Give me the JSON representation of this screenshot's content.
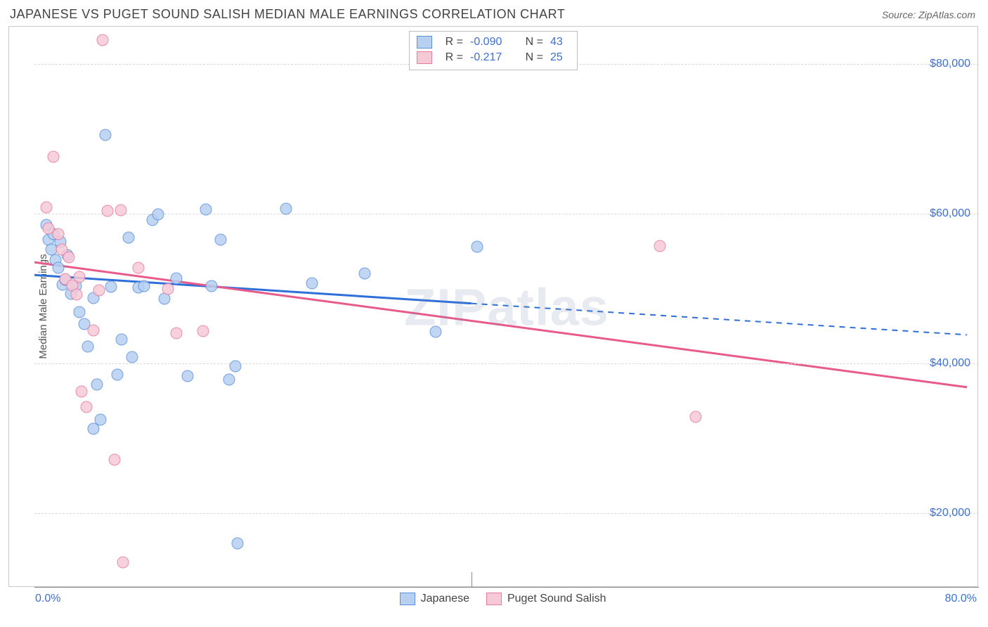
{
  "title": "JAPANESE VS PUGET SOUND SALISH MEDIAN MALE EARNINGS CORRELATION CHART",
  "source": "Source: ZipAtlas.com",
  "watermark": "ZIPatlas",
  "y_axis_label": "Median Male Earnings",
  "xlim": [
    0,
    80
  ],
  "ylim": [
    10000,
    85000
  ],
  "y_ticks": [
    20000,
    40000,
    60000,
    80000
  ],
  "y_tick_labels": [
    "$20,000",
    "$40,000",
    "$60,000",
    "$80,000"
  ],
  "x_min_label": "0.0%",
  "x_max_label": "80.0%",
  "x_center_tick_pct": 37,
  "series": [
    {
      "name": "Japanese",
      "fill": "#b7d0f1",
      "stroke": "#5a8fdc",
      "line_color": "#2e6fd8",
      "R": "-0.090",
      "N": "43",
      "trend_solid": {
        "x1": 0,
        "y1": 51800,
        "x2": 37,
        "y2": 48000
      },
      "trend_dash": {
        "x1": 37,
        "y1": 48000,
        "x2": 79,
        "y2": 43800
      },
      "points": [
        [
          1.0,
          58500
        ],
        [
          1.2,
          56500
        ],
        [
          1.4,
          55200
        ],
        [
          1.6,
          57300
        ],
        [
          1.8,
          53800
        ],
        [
          2.0,
          52800
        ],
        [
          2.2,
          56200
        ],
        [
          2.4,
          50500
        ],
        [
          2.6,
          51200
        ],
        [
          2.8,
          54500
        ],
        [
          3.1,
          49300
        ],
        [
          3.5,
          50300
        ],
        [
          3.8,
          46800
        ],
        [
          4.2,
          45200
        ],
        [
          4.5,
          42200
        ],
        [
          5.0,
          48700
        ],
        [
          5.3,
          37200
        ],
        [
          5.6,
          32500
        ],
        [
          6.0,
          70500
        ],
        [
          6.5,
          50200
        ],
        [
          7.0,
          38500
        ],
        [
          7.4,
          43200
        ],
        [
          8.0,
          56800
        ],
        [
          8.3,
          40800
        ],
        [
          8.8,
          50100
        ],
        [
          9.3,
          50300
        ],
        [
          10.0,
          59200
        ],
        [
          10.5,
          59900
        ],
        [
          11.0,
          48600
        ],
        [
          12.0,
          51400
        ],
        [
          13.0,
          38300
        ],
        [
          14.5,
          60600
        ],
        [
          15.0,
          50300
        ],
        [
          15.8,
          56500
        ],
        [
          16.5,
          37800
        ],
        [
          17.0,
          39600
        ],
        [
          17.2,
          15900
        ],
        [
          21.3,
          60700
        ],
        [
          23.5,
          50700
        ],
        [
          28.0,
          52000
        ],
        [
          34.0,
          44200
        ],
        [
          37.5,
          55600
        ],
        [
          5.0,
          31200
        ]
      ]
    },
    {
      "name": "Puget Sound Salish",
      "fill": "#f6c9d7",
      "stroke": "#e77aa0",
      "line_color": "#e85a8a",
      "R": "-0.217",
      "N": "25",
      "trend_solid": {
        "x1": 0,
        "y1": 53500,
        "x2": 79,
        "y2": 36800
      },
      "trend_dash": null,
      "points": [
        [
          1.0,
          60800
        ],
        [
          1.2,
          58000
        ],
        [
          1.6,
          67600
        ],
        [
          2.0,
          57300
        ],
        [
          2.3,
          55200
        ],
        [
          2.6,
          51300
        ],
        [
          2.9,
          54200
        ],
        [
          3.2,
          50400
        ],
        [
          3.6,
          49200
        ],
        [
          4.0,
          36200
        ],
        [
          4.4,
          34200
        ],
        [
          5.0,
          44400
        ],
        [
          5.5,
          49800
        ],
        [
          5.8,
          83200
        ],
        [
          6.2,
          60400
        ],
        [
          6.8,
          27100
        ],
        [
          7.3,
          60500
        ],
        [
          7.5,
          13400
        ],
        [
          8.8,
          52800
        ],
        [
          11.3,
          49900
        ],
        [
          12.0,
          44000
        ],
        [
          14.3,
          44300
        ],
        [
          53.0,
          55700
        ],
        [
          56.0,
          32800
        ],
        [
          3.8,
          51500
        ]
      ]
    }
  ]
}
